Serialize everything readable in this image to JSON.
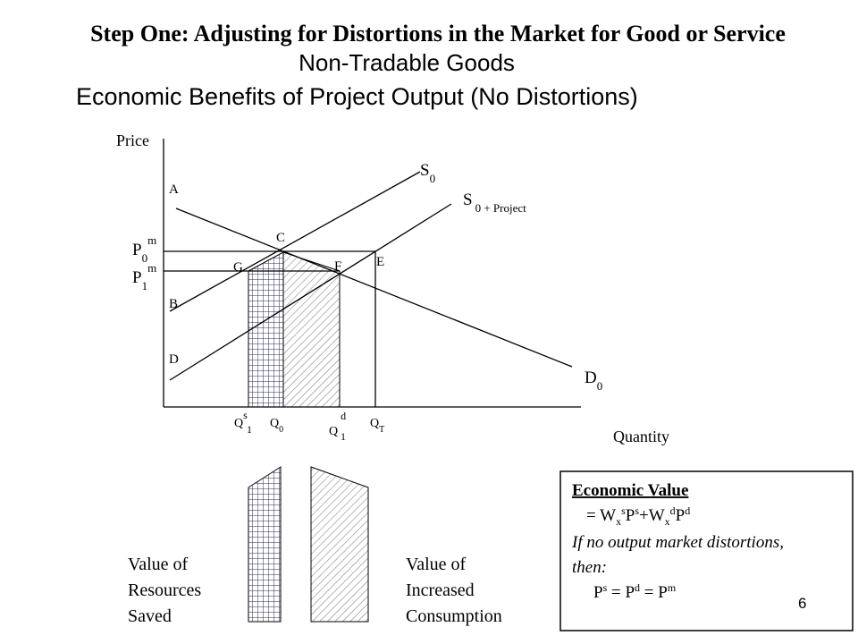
{
  "header": {
    "title": "Step One: Adjusting for Distortions in the Market for Good or Service",
    "subtitle": "Non-Tradable Goods",
    "heading": "Economic Benefits of Project Output (No Distortions)"
  },
  "diagram": {
    "y_axis_label": "Price",
    "x_axis_label": "Quantity",
    "points": [
      "A",
      "B",
      "C",
      "D",
      "E",
      "F",
      "G"
    ],
    "curves": {
      "supply": {
        "base": "S",
        "sub": "0"
      },
      "supply_project": {
        "base": "S",
        "sub": "0 + Project"
      },
      "demand": {
        "base": "D",
        "sub": "0"
      }
    },
    "prices": [
      {
        "base": "P",
        "sub": "0",
        "sup": "m"
      },
      {
        "base": "P",
        "sub": "1",
        "sup": "m"
      }
    ],
    "quantities": [
      {
        "base": "Q",
        "sub": "1",
        "sup": "s"
      },
      {
        "base": "Q",
        "sub": "0"
      },
      {
        "base": "Q",
        "sub": "1",
        "sup": "d"
      },
      {
        "base": "Q",
        "sub": "T"
      }
    ]
  },
  "legend": {
    "resources_saved": [
      "Value of",
      "Resources",
      "Saved"
    ],
    "increased_consumption": [
      "Value of",
      "Increased",
      "Consumption"
    ]
  },
  "box": {
    "title": "Economic Value",
    "formula": [
      "= W",
      "x",
      "s",
      "P",
      "s",
      "+W",
      "x",
      "d",
      "P",
      "d"
    ],
    "condition": [
      "If no output market distortions,",
      "then:"
    ],
    "equality": [
      "P",
      "s",
      " = P",
      "d",
      " = P",
      "m"
    ]
  },
  "slide_number": "6"
}
